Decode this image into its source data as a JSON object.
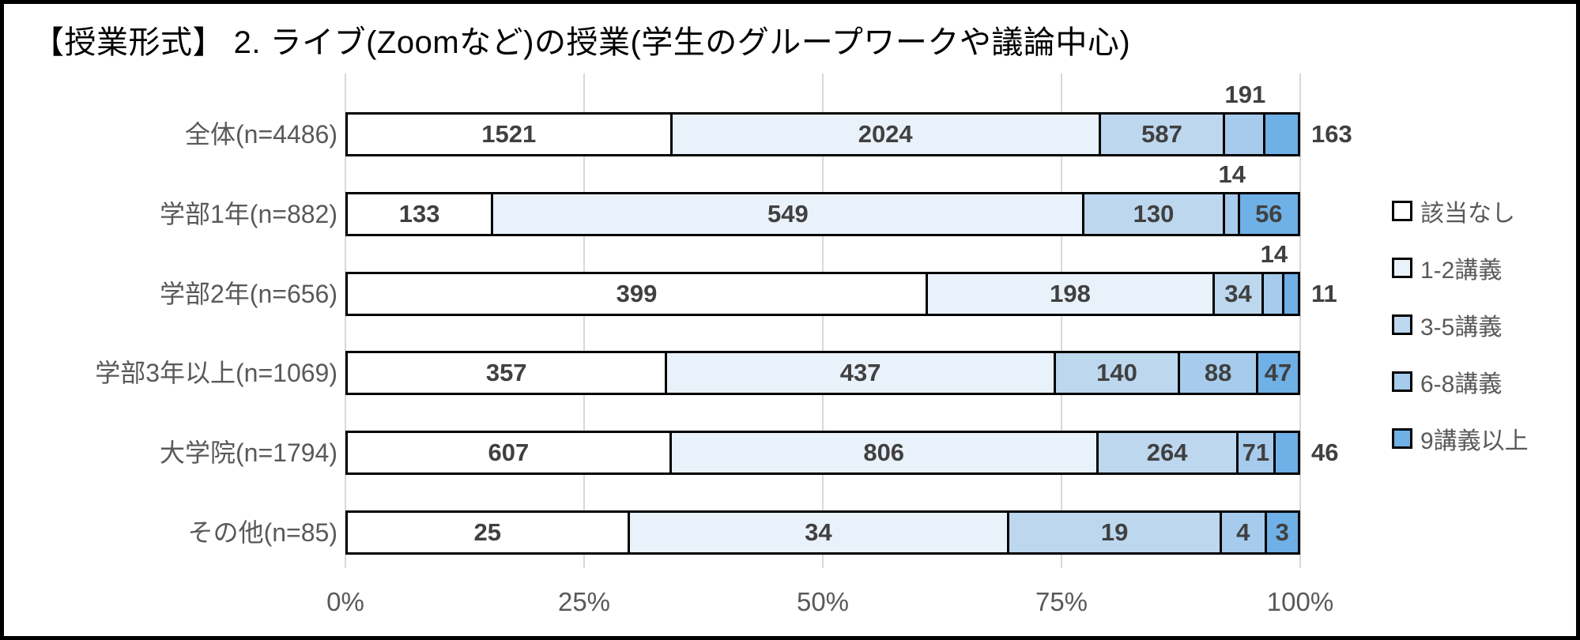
{
  "title": "【授業形式】 2. ライブ(Zoomなど)の授業(学生のグループワークや議論中心)",
  "colors": {
    "background": "#ffffff",
    "chart_border": "#000000",
    "segment_border": "#000000",
    "gridline": "#d9d9d9",
    "value_text": "#404040",
    "axis_text": "#595959",
    "segment_fills": [
      "#ffffff",
      "#e9f2fa",
      "#bdd7ee",
      "#a6cbec",
      "#6fb0e6"
    ]
  },
  "legend": {
    "position": "right",
    "items": [
      {
        "label": "該当なし",
        "color": "#ffffff"
      },
      {
        "label": "1-2講義",
        "color": "#e9f2fa"
      },
      {
        "label": "3-5講義",
        "color": "#bdd7ee"
      },
      {
        "label": "6-8講義",
        "color": "#a6cbec"
      },
      {
        "label": "9講義以上",
        "color": "#6fb0e6"
      }
    ]
  },
  "x_axis": {
    "tick_labels": [
      "0%",
      "25%",
      "50%",
      "75%",
      "100%"
    ],
    "tick_values": [
      0,
      25,
      50,
      75,
      100
    ]
  },
  "chart_data": {
    "type": "bar",
    "orientation": "horizontal",
    "stacked": true,
    "normalized": "percent",
    "title": "【授業形式】 2. ライブ(Zoomなど)の授業(学生のグループワークや議論中心)",
    "categories": [
      "全体(n=4486)",
      "学部1年(n=882)",
      "学部2年(n=656)",
      "学部3年以上(n=1069)",
      "大学院(n=1794)",
      "その他(n=85)"
    ],
    "totals": [
      4486,
      882,
      656,
      1069,
      1794,
      85
    ],
    "series": [
      {
        "name": "該当なし",
        "values": [
          1521,
          133,
          399,
          357,
          607,
          25
        ]
      },
      {
        "name": "1-2講義",
        "values": [
          2024,
          549,
          198,
          437,
          806,
          34
        ]
      },
      {
        "name": "3-5講義",
        "values": [
          587,
          130,
          34,
          140,
          264,
          19
        ]
      },
      {
        "name": "6-8講義",
        "values": [
          191,
          14,
          14,
          88,
          71,
          4
        ]
      },
      {
        "name": "9講義以上",
        "values": [
          163,
          56,
          11,
          47,
          46,
          3
        ]
      }
    ],
    "label_positions": [
      [
        "inside",
        "inside",
        "inside",
        "above",
        "right"
      ],
      [
        "inside",
        "inside",
        "inside",
        "above",
        "inside"
      ],
      [
        "inside",
        "inside",
        "inside",
        "above",
        "right"
      ],
      [
        "inside",
        "inside",
        "inside",
        "inside",
        "inside"
      ],
      [
        "inside",
        "inside",
        "inside",
        "inside",
        "right"
      ],
      [
        "inside",
        "inside",
        "inside",
        "inside",
        "inside"
      ]
    ],
    "xlim": [
      0,
      100
    ],
    "grid": true,
    "legend_position": "right"
  }
}
